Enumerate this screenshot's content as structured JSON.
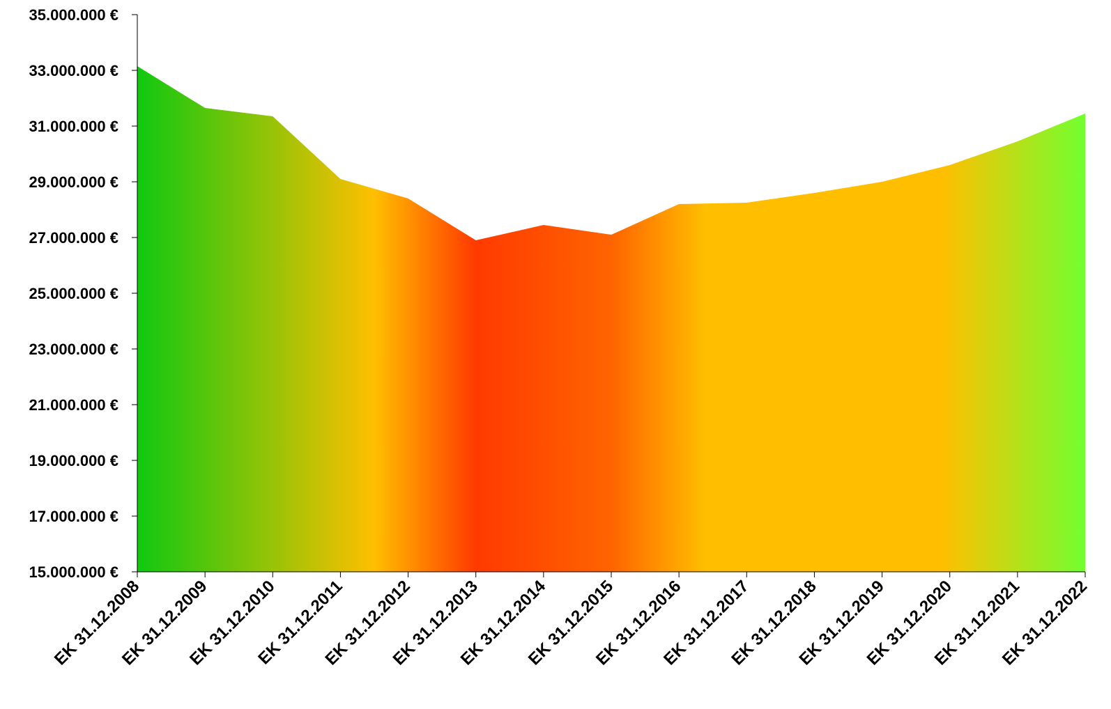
{
  "chart_data": {
    "type": "area",
    "title": "",
    "xlabel": "",
    "ylabel": "",
    "categories": [
      "EK 31.12.2008",
      "EK 31.12.2009",
      "EK 31.12.2010",
      "EK 31.12.2011",
      "EK 31.12.2012",
      "EK 31.12.2013",
      "EK 31.12.2014",
      "EK 31.12.2015",
      "EK 31.12.2016",
      "EK 31.12.2017",
      "EK 31.12.2018",
      "EK 31.12.2019",
      "EK 31.12.2020",
      "EK 31.12.2021",
      "EK 31.12.2022"
    ],
    "series": [
      {
        "values": [
          33150000,
          31650000,
          31350000,
          29100000,
          28400000,
          26900000,
          27450000,
          27100000,
          28200000,
          28250000,
          28600000,
          29000000,
          29600000,
          30450000,
          31450000
        ]
      }
    ],
    "ylim": [
      15000000,
      35000000
    ],
    "y_ticks": [
      15000000,
      17000000,
      19000000,
      21000000,
      23000000,
      25000000,
      27000000,
      29000000,
      31000000,
      33000000,
      35000000
    ],
    "y_tick_labels": [
      "15.000.000 €",
      "17.000.000 €",
      "19.000.000 €",
      "21.000.000 €",
      "23.000.000 €",
      "25.000.000 €",
      "27.000.000 €",
      "29.000.000 €",
      "31.000.000 €",
      "33.000.000 €",
      "35.000.000 €"
    ],
    "grid": false,
    "legend": "none",
    "fill_gradient": [
      {
        "at": 0.0,
        "color": "#10c810"
      },
      {
        "at": 0.25,
        "color": "#ffbf00"
      },
      {
        "at": 0.357,
        "color": "#ff3a00"
      },
      {
        "at": 0.5,
        "color": "#ff6400"
      },
      {
        "at": 0.6,
        "color": "#ffbf00"
      },
      {
        "at": 0.85,
        "color": "#ffbf00"
      },
      {
        "at": 1.0,
        "color": "#72ff30"
      }
    ],
    "axis_color": "#000000"
  }
}
